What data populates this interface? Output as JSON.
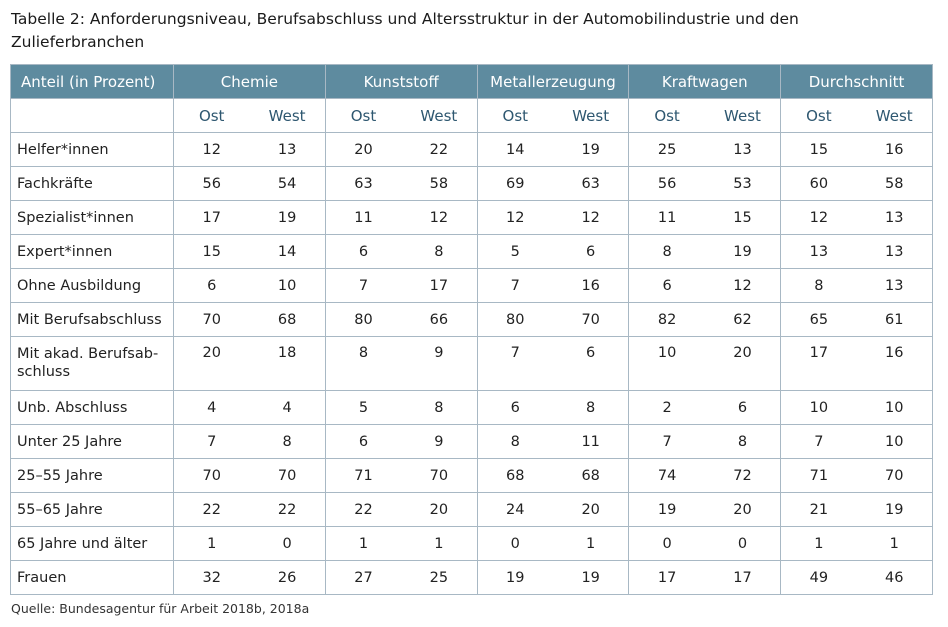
{
  "title": "Tabelle 2: Anforderungsniveau, Berufsabschluss und Altersstruktur in der Automobilindustrie und den Zulieferbranchen",
  "table": {
    "corner_label": "Anteil (in Prozent)",
    "groups": [
      "Chemie",
      "Kunststoff",
      "Metallerzeugung",
      "Kraftwagen",
      "Durchschnitt"
    ],
    "sub_labels": [
      "Ost",
      "West"
    ],
    "rows": [
      {
        "label": "Helfer*innen",
        "values": [
          "12",
          "13",
          "20",
          "22",
          "14",
          "19",
          "25",
          "13",
          "15",
          "16"
        ]
      },
      {
        "label": "Fachkräfte",
        "values": [
          "56",
          "54",
          "63",
          "58",
          "69",
          "63",
          "56",
          "53",
          "60",
          "58"
        ]
      },
      {
        "label": "Spezialist*innen",
        "values": [
          "17",
          "19",
          "11",
          "12",
          "12",
          "12",
          "11",
          "15",
          "12",
          "13"
        ]
      },
      {
        "label": "Expert*innen",
        "values": [
          "15",
          "14",
          "6",
          "8",
          "5",
          "6",
          "8",
          "19",
          "13",
          "13"
        ]
      },
      {
        "label": "Ohne Ausbildung",
        "values": [
          "6",
          "10",
          "7",
          "17",
          "7",
          "16",
          "6",
          "12",
          "8",
          "13"
        ]
      },
      {
        "label": "Mit Berufsabschluss",
        "values": [
          "70",
          "68",
          "80",
          "66",
          "80",
          "70",
          "82",
          "62",
          "65",
          "61"
        ]
      },
      {
        "label": "Mit akad. Berufsab-\nschluss",
        "values": [
          "20",
          "18",
          "8",
          "9",
          "7",
          "6",
          "10",
          "20",
          "17",
          "16"
        ]
      },
      {
        "label": "Unb. Abschluss",
        "values": [
          "4",
          "4",
          "5",
          "8",
          "6",
          "8",
          "2",
          "6",
          "10",
          "10"
        ]
      },
      {
        "label": "Unter 25 Jahre",
        "values": [
          "7",
          "8",
          "6",
          "9",
          "8",
          "11",
          "7",
          "8",
          "7",
          "10"
        ]
      },
      {
        "label": "25–55 Jahre",
        "values": [
          "70",
          "70",
          "71",
          "70",
          "68",
          "68",
          "74",
          "72",
          "71",
          "70"
        ]
      },
      {
        "label": "55–65 Jahre",
        "values": [
          "22",
          "22",
          "22",
          "20",
          "24",
          "20",
          "19",
          "20",
          "21",
          "19"
        ]
      },
      {
        "label": "65 Jahre und älter",
        "values": [
          "1",
          "0",
          "1",
          "1",
          "0",
          "1",
          "0",
          "0",
          "1",
          "1"
        ]
      },
      {
        "label": "Frauen",
        "values": [
          "32",
          "26",
          "27",
          "25",
          "19",
          "19",
          "17",
          "17",
          "49",
          "46"
        ]
      }
    ]
  },
  "source": "Quelle: Bundesagentur für Arbeit 2018b, 2018a",
  "colors": {
    "header_bg": "#5e8b9f",
    "header_text": "#ffffff",
    "subheader_text": "#2e5770",
    "grid": "#a8b8c4"
  }
}
